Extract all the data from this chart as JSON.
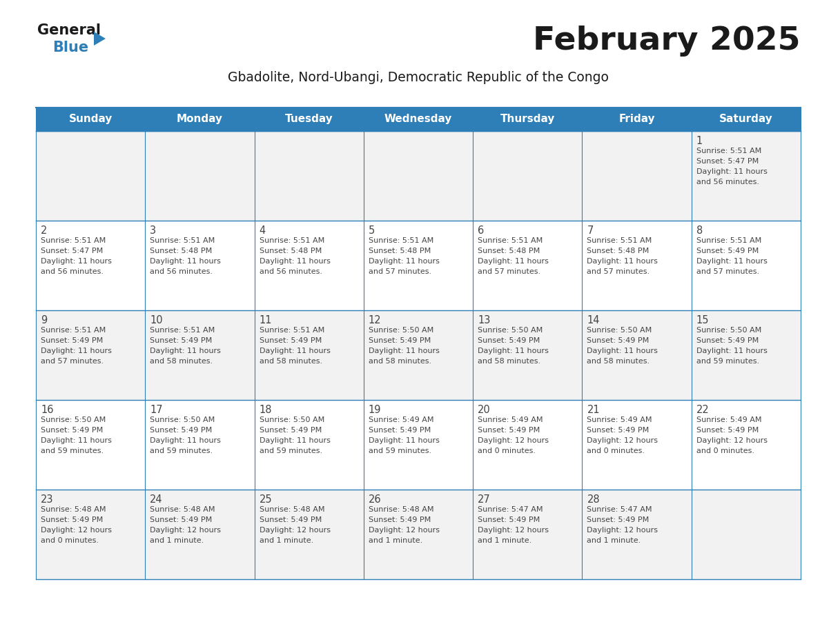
{
  "title": "February 2025",
  "subtitle": "Gbadolite, Nord-Ubangi, Democratic Republic of the Congo",
  "days_of_week": [
    "Sunday",
    "Monday",
    "Tuesday",
    "Wednesday",
    "Thursday",
    "Friday",
    "Saturday"
  ],
  "header_bg": "#2E7EB8",
  "header_text": "#FFFFFF",
  "cell_bg_odd": "#F2F2F2",
  "cell_bg_even": "#FFFFFF",
  "text_color": "#444444",
  "line_color": "#2E7EB8",
  "title_color": "#1a1a1a",
  "subtitle_color": "#1a1a1a",
  "calendar": [
    [
      null,
      null,
      null,
      null,
      null,
      null,
      {
        "day": 1,
        "sunrise": "5:51 AM",
        "sunset": "5:47 PM",
        "daylight": "11 hours",
        "daylight2": "and 56 minutes."
      }
    ],
    [
      {
        "day": 2,
        "sunrise": "5:51 AM",
        "sunset": "5:47 PM",
        "daylight": "11 hours",
        "daylight2": "and 56 minutes."
      },
      {
        "day": 3,
        "sunrise": "5:51 AM",
        "sunset": "5:48 PM",
        "daylight": "11 hours",
        "daylight2": "and 56 minutes."
      },
      {
        "day": 4,
        "sunrise": "5:51 AM",
        "sunset": "5:48 PM",
        "daylight": "11 hours",
        "daylight2": "and 56 minutes."
      },
      {
        "day": 5,
        "sunrise": "5:51 AM",
        "sunset": "5:48 PM",
        "daylight": "11 hours",
        "daylight2": "and 57 minutes."
      },
      {
        "day": 6,
        "sunrise": "5:51 AM",
        "sunset": "5:48 PM",
        "daylight": "11 hours",
        "daylight2": "and 57 minutes."
      },
      {
        "day": 7,
        "sunrise": "5:51 AM",
        "sunset": "5:48 PM",
        "daylight": "11 hours",
        "daylight2": "and 57 minutes."
      },
      {
        "day": 8,
        "sunrise": "5:51 AM",
        "sunset": "5:49 PM",
        "daylight": "11 hours",
        "daylight2": "and 57 minutes."
      }
    ],
    [
      {
        "day": 9,
        "sunrise": "5:51 AM",
        "sunset": "5:49 PM",
        "daylight": "11 hours",
        "daylight2": "and 57 minutes."
      },
      {
        "day": 10,
        "sunrise": "5:51 AM",
        "sunset": "5:49 PM",
        "daylight": "11 hours",
        "daylight2": "and 58 minutes."
      },
      {
        "day": 11,
        "sunrise": "5:51 AM",
        "sunset": "5:49 PM",
        "daylight": "11 hours",
        "daylight2": "and 58 minutes."
      },
      {
        "day": 12,
        "sunrise": "5:50 AM",
        "sunset": "5:49 PM",
        "daylight": "11 hours",
        "daylight2": "and 58 minutes."
      },
      {
        "day": 13,
        "sunrise": "5:50 AM",
        "sunset": "5:49 PM",
        "daylight": "11 hours",
        "daylight2": "and 58 minutes."
      },
      {
        "day": 14,
        "sunrise": "5:50 AM",
        "sunset": "5:49 PM",
        "daylight": "11 hours",
        "daylight2": "and 58 minutes."
      },
      {
        "day": 15,
        "sunrise": "5:50 AM",
        "sunset": "5:49 PM",
        "daylight": "11 hours",
        "daylight2": "and 59 minutes."
      }
    ],
    [
      {
        "day": 16,
        "sunrise": "5:50 AM",
        "sunset": "5:49 PM",
        "daylight": "11 hours",
        "daylight2": "and 59 minutes."
      },
      {
        "day": 17,
        "sunrise": "5:50 AM",
        "sunset": "5:49 PM",
        "daylight": "11 hours",
        "daylight2": "and 59 minutes."
      },
      {
        "day": 18,
        "sunrise": "5:50 AM",
        "sunset": "5:49 PM",
        "daylight": "11 hours",
        "daylight2": "and 59 minutes."
      },
      {
        "day": 19,
        "sunrise": "5:49 AM",
        "sunset": "5:49 PM",
        "daylight": "11 hours",
        "daylight2": "and 59 minutes."
      },
      {
        "day": 20,
        "sunrise": "5:49 AM",
        "sunset": "5:49 PM",
        "daylight": "12 hours",
        "daylight2": "and 0 minutes."
      },
      {
        "day": 21,
        "sunrise": "5:49 AM",
        "sunset": "5:49 PM",
        "daylight": "12 hours",
        "daylight2": "and 0 minutes."
      },
      {
        "day": 22,
        "sunrise": "5:49 AM",
        "sunset": "5:49 PM",
        "daylight": "12 hours",
        "daylight2": "and 0 minutes."
      }
    ],
    [
      {
        "day": 23,
        "sunrise": "5:48 AM",
        "sunset": "5:49 PM",
        "daylight": "12 hours",
        "daylight2": "and 0 minutes."
      },
      {
        "day": 24,
        "sunrise": "5:48 AM",
        "sunset": "5:49 PM",
        "daylight": "12 hours",
        "daylight2": "and 1 minute."
      },
      {
        "day": 25,
        "sunrise": "5:48 AM",
        "sunset": "5:49 PM",
        "daylight": "12 hours",
        "daylight2": "and 1 minute."
      },
      {
        "day": 26,
        "sunrise": "5:48 AM",
        "sunset": "5:49 PM",
        "daylight": "12 hours",
        "daylight2": "and 1 minute."
      },
      {
        "day": 27,
        "sunrise": "5:47 AM",
        "sunset": "5:49 PM",
        "daylight": "12 hours",
        "daylight2": "and 1 minute."
      },
      {
        "day": 28,
        "sunrise": "5:47 AM",
        "sunset": "5:49 PM",
        "daylight": "12 hours",
        "daylight2": "and 1 minute."
      },
      null
    ]
  ],
  "logo_general_color": "#1a1a1a",
  "logo_blue_color": "#2E7EB8"
}
